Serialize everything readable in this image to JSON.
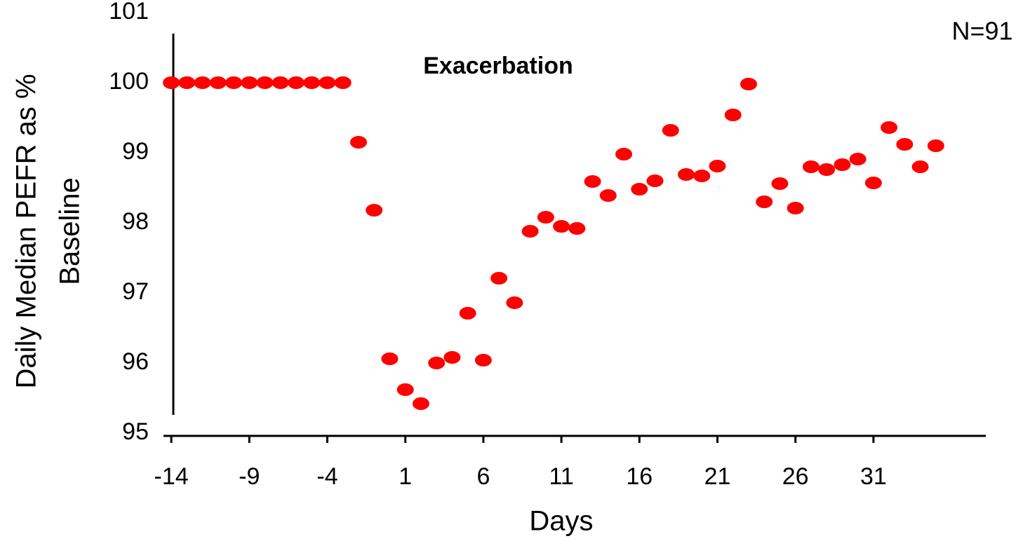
{
  "chart_data": {
    "type": "scatter",
    "ylabel": [
      "Daily Median PEFR as %",
      "Baseline"
    ],
    "xlabel": "Days",
    "annotations": [
      "Exacerbation",
      "N=91"
    ],
    "color": "#ff0000",
    "x": [
      -14,
      -13,
      -12,
      -11,
      -10,
      -9,
      -8,
      -7,
      -6,
      -5,
      -4,
      -3,
      -2,
      -1,
      0,
      1,
      2,
      3,
      4,
      5,
      6,
      7,
      8,
      9,
      10,
      11,
      12,
      13,
      14,
      15,
      16,
      17,
      18,
      19,
      20,
      21,
      22,
      23,
      24,
      25,
      26,
      27,
      28,
      29,
      30,
      31,
      32,
      33,
      34,
      35
    ],
    "values": [
      100,
      100,
      100,
      100,
      100,
      100,
      100,
      100,
      100,
      100,
      100,
      100,
      99.15,
      98.18,
      96.06,
      95.62,
      95.42,
      96.0,
      96.08,
      96.71,
      96.04,
      97.21,
      96.86,
      97.88,
      98.08,
      97.95,
      97.92,
      98.59,
      98.39,
      98.98,
      98.48,
      98.6,
      99.32,
      98.69,
      98.67,
      98.81,
      99.54,
      99.98,
      98.3,
      98.56,
      98.21,
      98.8,
      98.76,
      98.83,
      98.91,
      98.57,
      99.36,
      99.12,
      98.8,
      99.1
    ],
    "xlim": [
      -14.5,
      38.2
    ],
    "xticks": [
      -14,
      -9,
      -4,
      1,
      6,
      11,
      16,
      21,
      26,
      31
    ],
    "ylim": [
      95,
      101
    ],
    "yticks": [
      95,
      96,
      97,
      98,
      99,
      100,
      101
    ]
  }
}
